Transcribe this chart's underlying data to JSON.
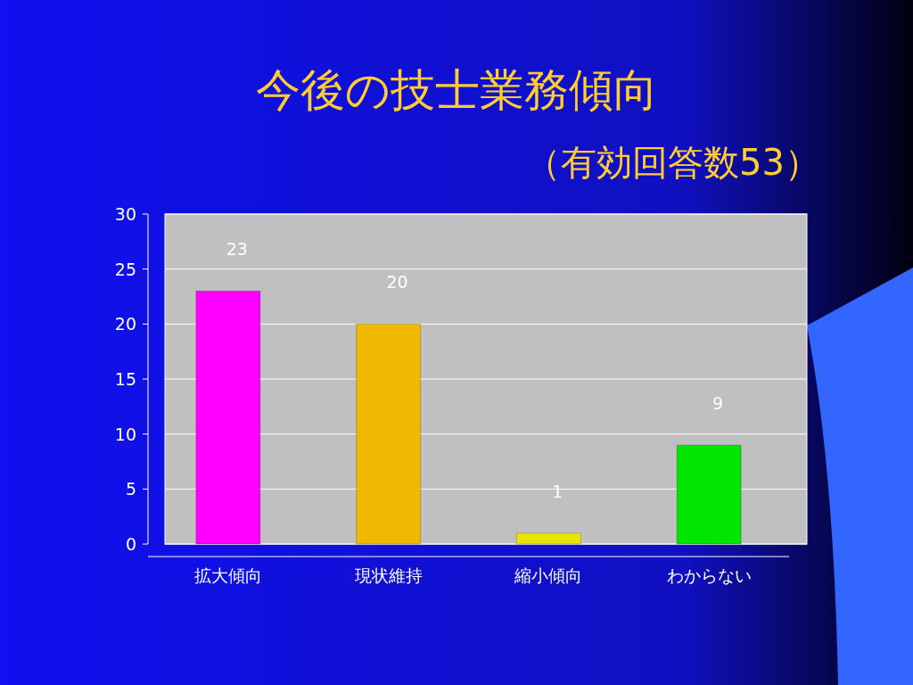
{
  "chart_data": {
    "type": "bar",
    "title": "今後の技士業務傾向",
    "subtitle": "（有効回答数53）",
    "categories": [
      "拡大傾向",
      "現状維持",
      "縮小傾向",
      "わからない"
    ],
    "values": [
      23,
      20,
      1,
      9
    ],
    "colors": [
      "#ff00ff",
      "#f0b800",
      "#e6e600",
      "#00e600"
    ],
    "ylim": [
      0,
      30
    ],
    "yticks": [
      0,
      5,
      10,
      15,
      20,
      25,
      30
    ],
    "grid": "y",
    "data_labels": true
  }
}
